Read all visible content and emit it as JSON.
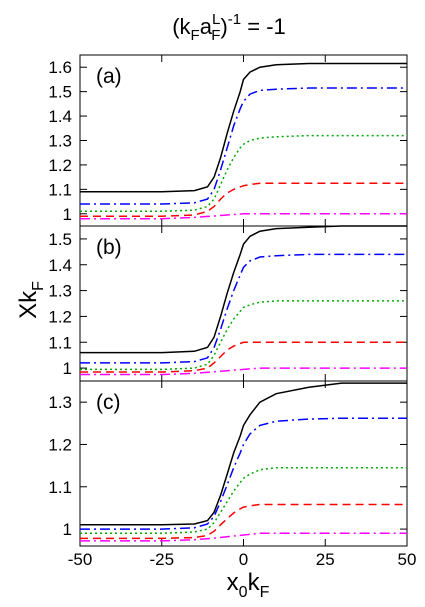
{
  "title": {
    "prefix": "(k",
    "sub_f": "F",
    "a": "a",
    "sub_f2": "F",
    "sup_l": "L",
    "close": ")",
    "sup_exp": "-1",
    "tail": " = -1"
  },
  "ylabel": {
    "main": "Xk",
    "sub": "F"
  },
  "xlabel": {
    "main": "x",
    "sub0": "0",
    "k": "k",
    "subF": "F"
  },
  "chart_data": [
    {
      "type": "line",
      "panel_label": "(a)",
      "xlim": [
        -50,
        50
      ],
      "ylim": [
        0.95,
        1.65
      ],
      "yticks": [
        1,
        1.1,
        1.2,
        1.3,
        1.4,
        1.5,
        1.6
      ],
      "xticks": [
        -50,
        -25,
        0,
        25,
        50
      ],
      "series": [
        {
          "color": "#000000",
          "dash": "",
          "x": [
            -50,
            -25,
            -15,
            -11,
            -9,
            -7,
            -5,
            -3,
            -1,
            0,
            2,
            5,
            10,
            20,
            30,
            50
          ],
          "y": [
            1.09,
            1.09,
            1.095,
            1.11,
            1.15,
            1.23,
            1.33,
            1.42,
            1.5,
            1.55,
            1.58,
            1.6,
            1.61,
            1.615,
            1.615,
            1.615
          ]
        },
        {
          "color": "#0000ff",
          "dash": "10,4,2,4",
          "x": [
            -50,
            -25,
            -15,
            -11,
            -9,
            -7,
            -5,
            -3,
            -1,
            0,
            2,
            5,
            10,
            20,
            30,
            50
          ],
          "y": [
            1.04,
            1.04,
            1.045,
            1.06,
            1.1,
            1.18,
            1.27,
            1.36,
            1.43,
            1.46,
            1.49,
            1.505,
            1.51,
            1.515,
            1.515,
            1.515
          ]
        },
        {
          "color": "#00aa00",
          "dash": "2,3",
          "x": [
            -50,
            -25,
            -15,
            -11,
            -9,
            -7,
            -5,
            -3,
            -1,
            0,
            2,
            5,
            10,
            20,
            30,
            50
          ],
          "y": [
            1.01,
            1.01,
            1.015,
            1.03,
            1.06,
            1.12,
            1.18,
            1.23,
            1.27,
            1.285,
            1.3,
            1.31,
            1.315,
            1.32,
            1.32,
            1.32
          ]
        },
        {
          "color": "#ff0000",
          "dash": "8,5",
          "x": [
            -50,
            -25,
            -15,
            -11,
            -9,
            -7,
            -5,
            -3,
            -1,
            0,
            2,
            5,
            10,
            20,
            30,
            50
          ],
          "y": [
            0.99,
            0.99,
            0.995,
            1.01,
            1.03,
            1.06,
            1.085,
            1.1,
            1.11,
            1.115,
            1.12,
            1.125,
            1.125,
            1.125,
            1.125,
            1.125
          ]
        },
        {
          "color": "#ff00ff",
          "dash": "10,4,2,4",
          "x": [
            -50,
            -25,
            -15,
            -10,
            -5,
            0,
            5,
            10,
            25,
            50
          ],
          "y": [
            0.98,
            0.98,
            0.985,
            0.99,
            0.995,
            1.0,
            1.0,
            1.0,
            1.0,
            1.0
          ]
        }
      ]
    },
    {
      "type": "line",
      "panel_label": "(b)",
      "xlim": [
        -50,
        50
      ],
      "ylim": [
        0.95,
        1.55
      ],
      "yticks": [
        1,
        1.1,
        1.2,
        1.3,
        1.4,
        1.5
      ],
      "xticks": [
        -50,
        -25,
        0,
        25,
        50
      ],
      "series": [
        {
          "color": "#000000",
          "dash": "",
          "x": [
            -50,
            -25,
            -15,
            -11,
            -9,
            -7,
            -5,
            -3,
            -1,
            0,
            2,
            5,
            10,
            20,
            30,
            50
          ],
          "y": [
            1.06,
            1.06,
            1.065,
            1.08,
            1.12,
            1.2,
            1.29,
            1.37,
            1.44,
            1.48,
            1.51,
            1.53,
            1.54,
            1.545,
            1.55,
            1.55
          ]
        },
        {
          "color": "#0000ff",
          "dash": "10,4,2,4",
          "x": [
            -50,
            -25,
            -15,
            -11,
            -9,
            -7,
            -5,
            -3,
            -1,
            0,
            2,
            5,
            10,
            20,
            30,
            50
          ],
          "y": [
            1.02,
            1.02,
            1.025,
            1.04,
            1.08,
            1.15,
            1.23,
            1.3,
            1.36,
            1.39,
            1.415,
            1.43,
            1.435,
            1.44,
            1.44,
            1.44
          ]
        },
        {
          "color": "#00aa00",
          "dash": "2,3",
          "x": [
            -50,
            -25,
            -15,
            -11,
            -9,
            -7,
            -5,
            -3,
            -1,
            0,
            2,
            5,
            10,
            20,
            30,
            50
          ],
          "y": [
            0.995,
            0.995,
            1.0,
            1.015,
            1.05,
            1.1,
            1.15,
            1.19,
            1.22,
            1.235,
            1.245,
            1.255,
            1.26,
            1.26,
            1.26,
            1.26
          ]
        },
        {
          "color": "#ff0000",
          "dash": "8,5",
          "x": [
            -50,
            -25,
            -15,
            -11,
            -9,
            -7,
            -5,
            -3,
            -1,
            0,
            2,
            5,
            10,
            20,
            30,
            50
          ],
          "y": [
            0.985,
            0.985,
            0.99,
            1.0,
            1.02,
            1.045,
            1.07,
            1.085,
            1.095,
            1.1,
            1.1,
            1.1,
            1.1,
            1.1,
            1.1,
            1.1
          ]
        },
        {
          "color": "#ff00ff",
          "dash": "10,4,2,4",
          "x": [
            -50,
            -25,
            -15,
            -10,
            -5,
            0,
            5,
            10,
            25,
            50
          ],
          "y": [
            0.975,
            0.975,
            0.98,
            0.985,
            0.99,
            0.995,
            1.0,
            1.0,
            1.0,
            1.0
          ]
        }
      ]
    },
    {
      "type": "line",
      "panel_label": "(c)",
      "xlim": [
        -50,
        50
      ],
      "ylim": [
        0.96,
        1.35
      ],
      "yticks": [
        1,
        1.1,
        1.2,
        1.3
      ],
      "xticks": [
        -50,
        -25,
        0,
        25,
        50
      ],
      "series": [
        {
          "color": "#000000",
          "dash": "",
          "x": [
            -50,
            -25,
            -15,
            -11,
            -9,
            -7,
            -5,
            -3,
            -1,
            0,
            2,
            5,
            10,
            20,
            30,
            50
          ],
          "y": [
            1.01,
            1.01,
            1.012,
            1.02,
            1.04,
            1.08,
            1.13,
            1.18,
            1.22,
            1.245,
            1.27,
            1.3,
            1.32,
            1.335,
            1.345,
            1.345
          ]
        },
        {
          "color": "#0000ff",
          "dash": "10,4,2,4",
          "x": [
            -50,
            -25,
            -15,
            -11,
            -9,
            -7,
            -5,
            -3,
            -1,
            0,
            2,
            5,
            10,
            20,
            30,
            50
          ],
          "y": [
            1.0,
            1.0,
            1.003,
            1.012,
            1.03,
            1.065,
            1.105,
            1.145,
            1.18,
            1.2,
            1.225,
            1.245,
            1.255,
            1.26,
            1.262,
            1.262
          ]
        },
        {
          "color": "#00aa00",
          "dash": "2,3",
          "x": [
            -50,
            -25,
            -15,
            -11,
            -9,
            -7,
            -5,
            -3,
            -1,
            0,
            2,
            5,
            10,
            20,
            30,
            50
          ],
          "y": [
            0.99,
            0.99,
            0.993,
            1.0,
            1.015,
            1.04,
            1.065,
            1.09,
            1.11,
            1.12,
            1.13,
            1.14,
            1.145,
            1.145,
            1.145,
            1.145
          ]
        },
        {
          "color": "#ff0000",
          "dash": "8,5",
          "x": [
            -50,
            -25,
            -15,
            -11,
            -9,
            -7,
            -5,
            -3,
            -1,
            0,
            2,
            5,
            10,
            20,
            30,
            50
          ],
          "y": [
            0.978,
            0.978,
            0.98,
            0.985,
            0.995,
            1.01,
            1.025,
            1.038,
            1.048,
            1.052,
            1.055,
            1.058,
            1.058,
            1.058,
            1.058,
            1.058
          ]
        },
        {
          "color": "#ff00ff",
          "dash": "10,4,2,4",
          "x": [
            -50,
            -25,
            -15,
            -10,
            -5,
            0,
            5,
            10,
            25,
            50
          ],
          "y": [
            0.972,
            0.972,
            0.975,
            0.978,
            0.982,
            0.986,
            0.99,
            0.99,
            0.99,
            0.99
          ]
        }
      ]
    }
  ]
}
